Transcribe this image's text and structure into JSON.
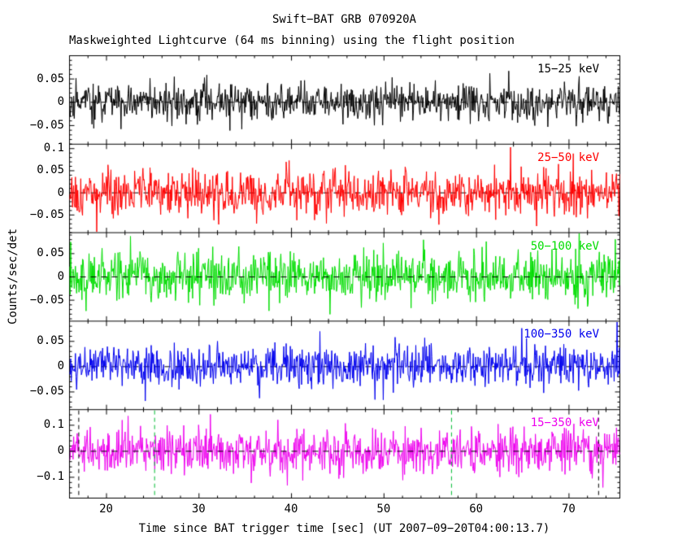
{
  "title": "Swift−BAT GRB 070920A",
  "subtitle": "Maskweighted Lightcurve (64 ms binning) using the flight position",
  "xlabel": "Time since BAT trigger time [sec] (UT 2007−09−20T04:00:13.7)",
  "ylabel": "Counts/sec/det",
  "chart_data": {
    "type": "line",
    "x_range": [
      16,
      75.5
    ],
    "x_major_ticks": [
      20,
      30,
      40,
      50,
      60,
      70
    ],
    "x_minor_tick_step": 2,
    "bin_seconds": 0.064,
    "signal_model": "noise-dominated maskweighted lightcurve; every energy band fluctuates around mean 0 counts/sec/det with no obvious burst peak",
    "panels": [
      {
        "label": "15−25 keV",
        "color": "#000000",
        "ylim": [
          -0.09,
          0.1
        ],
        "ytick_values": [
          0.05,
          0,
          -0.05
        ],
        "ytick_labels": [
          "0.05",
          "0",
          "−0.05"
        ],
        "ytick_minor_step": 0.01,
        "mean": 0,
        "noise_sigma": 0.02,
        "seed": 101,
        "zero_line_on_top": false
      },
      {
        "label": "25−50 keV",
        "color": "#ff0000",
        "ylim": [
          -0.09,
          0.11
        ],
        "ytick_values": [
          0.1,
          0.05,
          0,
          -0.05
        ],
        "ytick_labels": [
          "0.1",
          "0.05",
          "0",
          "−0.05"
        ],
        "ytick_minor_step": 0.01,
        "mean": 0,
        "noise_sigma": 0.025,
        "seed": 202,
        "zero_line_on_top": false
      },
      {
        "label": "50−100 keV",
        "color": "#00dd00",
        "ylim": [
          -0.095,
          0.095
        ],
        "ytick_values": [
          0.05,
          0,
          -0.05
        ],
        "ytick_labels": [
          "0.05",
          "0",
          "−0.05"
        ],
        "ytick_minor_step": 0.01,
        "mean": 0,
        "noise_sigma": 0.026,
        "seed": 303,
        "zero_line_on_top": true
      },
      {
        "label": "100−350 keV",
        "color": "#0000ee",
        "ylim": [
          -0.085,
          0.09
        ],
        "ytick_values": [
          0.05,
          0,
          -0.05
        ],
        "ytick_labels": [
          "0.05",
          "0",
          "−0.05"
        ],
        "ytick_minor_step": 0.01,
        "mean": 0,
        "noise_sigma": 0.02,
        "seed": 404,
        "zero_line_on_top": false
      },
      {
        "label": "15−350 keV",
        "color": "#ee00ee",
        "ylim": [
          -0.18,
          0.16
        ],
        "ytick_values": [
          0.1,
          0,
          -0.1
        ],
        "ytick_labels": [
          "0.1",
          "0",
          "−0.1"
        ],
        "ytick_minor_step": 0.02,
        "mean": 0,
        "noise_sigma": 0.042,
        "seed": 505,
        "zero_line_on_top": true
      }
    ],
    "zero_line": {
      "dash": [
        7,
        6
      ],
      "color": "#000000"
    },
    "markers": {
      "panel_label": "15−350 keV",
      "black_dashed_x": [
        17.0,
        73.2
      ],
      "green_dashed_x": [
        25.2,
        57.3
      ],
      "black_color": "#000000",
      "green_color": "#00bb33",
      "dash": [
        5,
        4
      ]
    }
  }
}
